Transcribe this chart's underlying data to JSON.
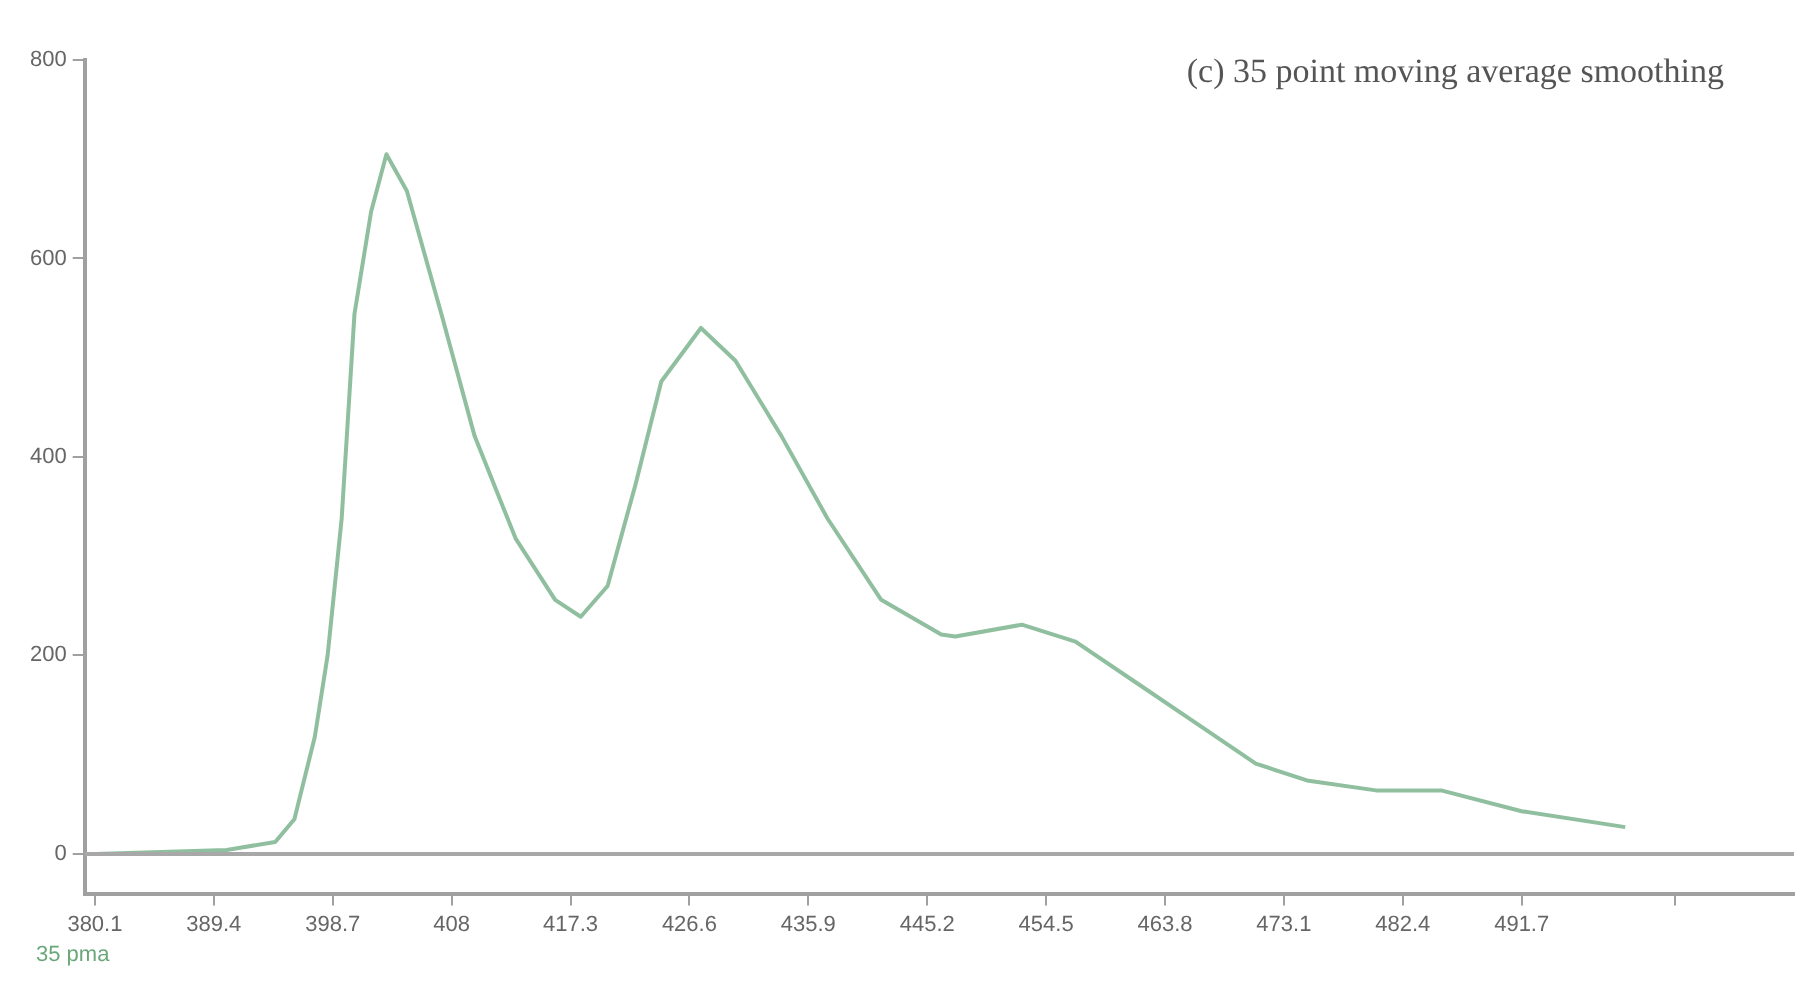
{
  "chart_data": {
    "type": "line",
    "annotations": [
      "(c) 35 point moving average smoothing",
      "35 pma"
    ],
    "x": [
      380.1,
      390.4,
      394.2,
      395.7,
      397.3,
      398.3,
      399.4,
      400.4,
      401.7,
      402.9,
      404.5,
      407.2,
      409.8,
      413,
      416.1,
      418.1,
      420.2,
      422.4,
      424.4,
      427.5,
      430.2,
      433.8,
      437.4,
      441.6,
      446.3,
      447.4,
      452.6,
      456.8,
      461.5,
      466.2,
      470.9,
      474.9,
      480.3,
      485.4,
      491.7,
      499.8
    ],
    "series": [
      {
        "color": "#8fbf9f",
        "values": [
          0,
          4,
          12,
          35,
          118,
          200,
          338,
          544,
          647,
          705,
          668,
          544,
          421,
          318,
          256,
          239,
          270,
          373,
          476,
          530,
          497,
          421,
          338,
          256,
          221,
          219,
          231,
          214,
          173,
          132,
          91,
          74,
          64,
          64,
          43,
          27
        ]
      }
    ],
    "xlim": [
      379.3,
      513
    ],
    "xticks": [
      380.1,
      389.4,
      398.7,
      408,
      417.3,
      426.6,
      435.9,
      445.2,
      454.5,
      463.8,
      473.1,
      482.4,
      491.7,
      {
        "value": 503.7,
        "label": null
      }
    ],
    "ylim": [
      -40,
      800
    ],
    "yticks": [
      0,
      200,
      400,
      600,
      800
    ],
    "ref_lines": [
      {
        "axis": "y",
        "value": 0,
        "color": "#a8a8a8"
      }
    ],
    "grid": false,
    "legend": false,
    "marker": "none",
    "line_style": "solid"
  }
}
